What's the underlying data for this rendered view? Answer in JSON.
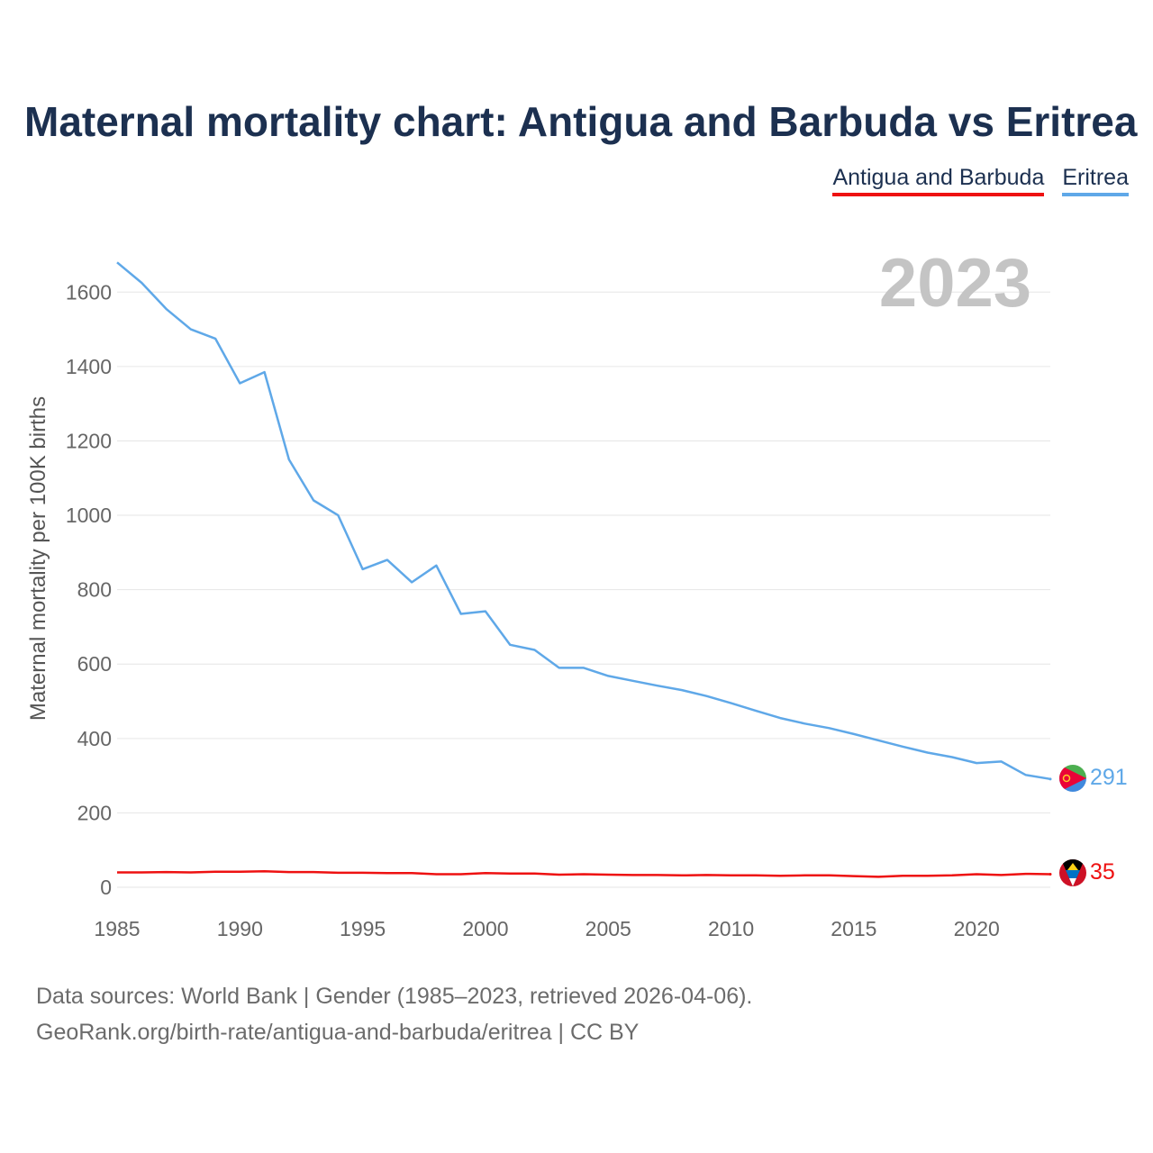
{
  "chart_data": {
    "type": "line",
    "title": "Maternal mortality chart: Antigua and Barbuda vs Eritrea",
    "ylabel": "Maternal mortality per 100K births",
    "xlabel": "",
    "year_label": "2023",
    "xlim": [
      1985,
      2023
    ],
    "ylim": [
      0,
      1700
    ],
    "x_ticks": [
      1985,
      1990,
      1995,
      2000,
      2005,
      2010,
      2015,
      2020
    ],
    "y_ticks": [
      0,
      200,
      400,
      600,
      800,
      1000,
      1200,
      1400,
      1600
    ],
    "x": [
      1985,
      1986,
      1987,
      1988,
      1989,
      1990,
      1991,
      1992,
      1993,
      1994,
      1995,
      1996,
      1997,
      1998,
      1999,
      2000,
      2001,
      2002,
      2003,
      2004,
      2005,
      2006,
      2007,
      2008,
      2009,
      2010,
      2011,
      2012,
      2013,
      2014,
      2015,
      2016,
      2017,
      2018,
      2019,
      2020,
      2021,
      2022,
      2023
    ],
    "series": [
      {
        "name": "Antigua and Barbuda",
        "color": "#ee1111",
        "end_label": "35",
        "values": [
          40,
          40,
          41,
          40,
          42,
          42,
          43,
          41,
          41,
          39,
          39,
          38,
          38,
          35,
          35,
          38,
          37,
          37,
          34,
          35,
          34,
          33,
          33,
          32,
          33,
          32,
          32,
          31,
          32,
          32,
          30,
          28,
          31,
          31,
          32,
          35,
          33,
          36,
          35
        ]
      },
      {
        "name": "Eritrea",
        "color": "#5fa8e8",
        "end_label": "291",
        "values": [
          1680,
          1625,
          1555,
          1500,
          1475,
          1355,
          1385,
          1150,
          1040,
          1000,
          855,
          880,
          820,
          865,
          735,
          742,
          652,
          638,
          590,
          590,
          568,
          555,
          542,
          530,
          514,
          495,
          475,
          455,
          440,
          428,
          412,
          395,
          378,
          362,
          350,
          334,
          338,
          302,
          291
        ]
      }
    ]
  },
  "legend": {
    "antigua": "Antigua and Barbuda",
    "eritrea": "Eritrea"
  },
  "footer": {
    "line1": "Data sources: World Bank | Gender (1985–2023, retrieved 2026-04-06).",
    "line2": "GeoRank.org/birth-rate/antigua-and-barbuda/eritrea | CC BY"
  },
  "colors": {
    "title": "#1c3050",
    "antigua": "#ee1111",
    "eritrea": "#5fa8e8",
    "grid": "#e6e6e6"
  }
}
